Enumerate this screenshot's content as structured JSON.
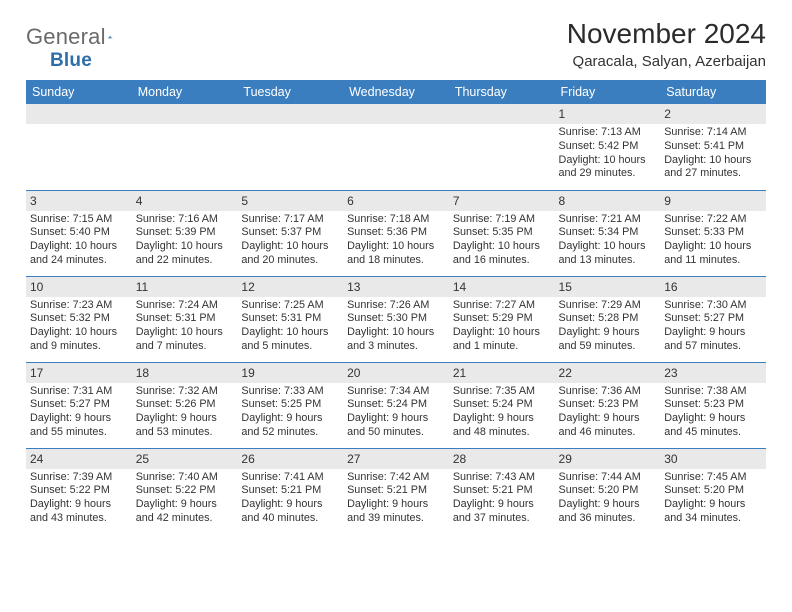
{
  "logo": {
    "word1": "General",
    "word2": "Blue"
  },
  "title": "November 2024",
  "location": "Qaracala, Salyan, Azerbaijan",
  "colors": {
    "header_bg": "#3a7ebf",
    "header_text": "#ffffff",
    "daynum_bg": "#e9e9e9",
    "row_border": "#3a7ebf",
    "logo_gray": "#6a6a6a",
    "logo_blue": "#2f6fa8"
  },
  "weekdays": [
    "Sunday",
    "Monday",
    "Tuesday",
    "Wednesday",
    "Thursday",
    "Friday",
    "Saturday"
  ],
  "grid": [
    [
      {
        "blank": true
      },
      {
        "blank": true
      },
      {
        "blank": true
      },
      {
        "blank": true
      },
      {
        "blank": true
      },
      {
        "day": "1",
        "sunrise": "Sunrise: 7:13 AM",
        "sunset": "Sunset: 5:42 PM",
        "daylight": "Daylight: 10 hours and 29 minutes."
      },
      {
        "day": "2",
        "sunrise": "Sunrise: 7:14 AM",
        "sunset": "Sunset: 5:41 PM",
        "daylight": "Daylight: 10 hours and 27 minutes."
      }
    ],
    [
      {
        "day": "3",
        "sunrise": "Sunrise: 7:15 AM",
        "sunset": "Sunset: 5:40 PM",
        "daylight": "Daylight: 10 hours and 24 minutes."
      },
      {
        "day": "4",
        "sunrise": "Sunrise: 7:16 AM",
        "sunset": "Sunset: 5:39 PM",
        "daylight": "Daylight: 10 hours and 22 minutes."
      },
      {
        "day": "5",
        "sunrise": "Sunrise: 7:17 AM",
        "sunset": "Sunset: 5:37 PM",
        "daylight": "Daylight: 10 hours and 20 minutes."
      },
      {
        "day": "6",
        "sunrise": "Sunrise: 7:18 AM",
        "sunset": "Sunset: 5:36 PM",
        "daylight": "Daylight: 10 hours and 18 minutes."
      },
      {
        "day": "7",
        "sunrise": "Sunrise: 7:19 AM",
        "sunset": "Sunset: 5:35 PM",
        "daylight": "Daylight: 10 hours and 16 minutes."
      },
      {
        "day": "8",
        "sunrise": "Sunrise: 7:21 AM",
        "sunset": "Sunset: 5:34 PM",
        "daylight": "Daylight: 10 hours and 13 minutes."
      },
      {
        "day": "9",
        "sunrise": "Sunrise: 7:22 AM",
        "sunset": "Sunset: 5:33 PM",
        "daylight": "Daylight: 10 hours and 11 minutes."
      }
    ],
    [
      {
        "day": "10",
        "sunrise": "Sunrise: 7:23 AM",
        "sunset": "Sunset: 5:32 PM",
        "daylight": "Daylight: 10 hours and 9 minutes."
      },
      {
        "day": "11",
        "sunrise": "Sunrise: 7:24 AM",
        "sunset": "Sunset: 5:31 PM",
        "daylight": "Daylight: 10 hours and 7 minutes."
      },
      {
        "day": "12",
        "sunrise": "Sunrise: 7:25 AM",
        "sunset": "Sunset: 5:31 PM",
        "daylight": "Daylight: 10 hours and 5 minutes."
      },
      {
        "day": "13",
        "sunrise": "Sunrise: 7:26 AM",
        "sunset": "Sunset: 5:30 PM",
        "daylight": "Daylight: 10 hours and 3 minutes."
      },
      {
        "day": "14",
        "sunrise": "Sunrise: 7:27 AM",
        "sunset": "Sunset: 5:29 PM",
        "daylight": "Daylight: 10 hours and 1 minute."
      },
      {
        "day": "15",
        "sunrise": "Sunrise: 7:29 AM",
        "sunset": "Sunset: 5:28 PM",
        "daylight": "Daylight: 9 hours and 59 minutes."
      },
      {
        "day": "16",
        "sunrise": "Sunrise: 7:30 AM",
        "sunset": "Sunset: 5:27 PM",
        "daylight": "Daylight: 9 hours and 57 minutes."
      }
    ],
    [
      {
        "day": "17",
        "sunrise": "Sunrise: 7:31 AM",
        "sunset": "Sunset: 5:27 PM",
        "daylight": "Daylight: 9 hours and 55 minutes."
      },
      {
        "day": "18",
        "sunrise": "Sunrise: 7:32 AM",
        "sunset": "Sunset: 5:26 PM",
        "daylight": "Daylight: 9 hours and 53 minutes."
      },
      {
        "day": "19",
        "sunrise": "Sunrise: 7:33 AM",
        "sunset": "Sunset: 5:25 PM",
        "daylight": "Daylight: 9 hours and 52 minutes."
      },
      {
        "day": "20",
        "sunrise": "Sunrise: 7:34 AM",
        "sunset": "Sunset: 5:24 PM",
        "daylight": "Daylight: 9 hours and 50 minutes."
      },
      {
        "day": "21",
        "sunrise": "Sunrise: 7:35 AM",
        "sunset": "Sunset: 5:24 PM",
        "daylight": "Daylight: 9 hours and 48 minutes."
      },
      {
        "day": "22",
        "sunrise": "Sunrise: 7:36 AM",
        "sunset": "Sunset: 5:23 PM",
        "daylight": "Daylight: 9 hours and 46 minutes."
      },
      {
        "day": "23",
        "sunrise": "Sunrise: 7:38 AM",
        "sunset": "Sunset: 5:23 PM",
        "daylight": "Daylight: 9 hours and 45 minutes."
      }
    ],
    [
      {
        "day": "24",
        "sunrise": "Sunrise: 7:39 AM",
        "sunset": "Sunset: 5:22 PM",
        "daylight": "Daylight: 9 hours and 43 minutes."
      },
      {
        "day": "25",
        "sunrise": "Sunrise: 7:40 AM",
        "sunset": "Sunset: 5:22 PM",
        "daylight": "Daylight: 9 hours and 42 minutes."
      },
      {
        "day": "26",
        "sunrise": "Sunrise: 7:41 AM",
        "sunset": "Sunset: 5:21 PM",
        "daylight": "Daylight: 9 hours and 40 minutes."
      },
      {
        "day": "27",
        "sunrise": "Sunrise: 7:42 AM",
        "sunset": "Sunset: 5:21 PM",
        "daylight": "Daylight: 9 hours and 39 minutes."
      },
      {
        "day": "28",
        "sunrise": "Sunrise: 7:43 AM",
        "sunset": "Sunset: 5:21 PM",
        "daylight": "Daylight: 9 hours and 37 minutes."
      },
      {
        "day": "29",
        "sunrise": "Sunrise: 7:44 AM",
        "sunset": "Sunset: 5:20 PM",
        "daylight": "Daylight: 9 hours and 36 minutes."
      },
      {
        "day": "30",
        "sunrise": "Sunrise: 7:45 AM",
        "sunset": "Sunset: 5:20 PM",
        "daylight": "Daylight: 9 hours and 34 minutes."
      }
    ]
  ]
}
